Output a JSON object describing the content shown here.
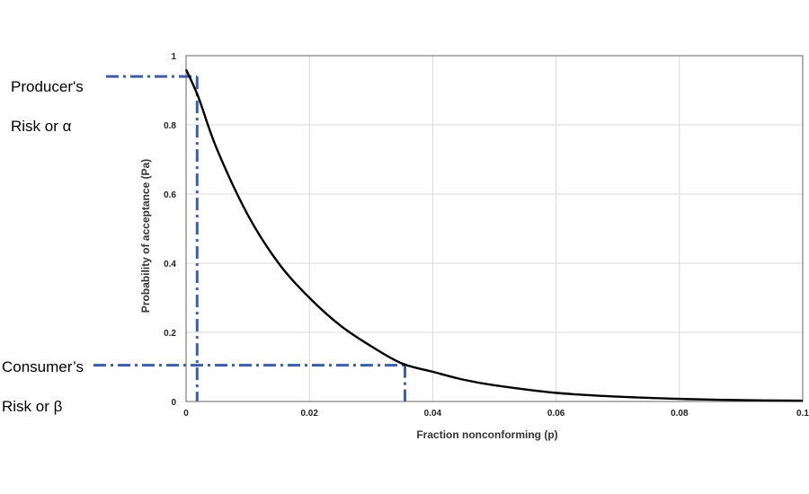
{
  "annotations": {
    "producer_line1": "Producer's",
    "producer_line2": "Risk or α",
    "consumer_line1": "Consumer’s",
    "consumer_line2": "Risk or β"
  },
  "chart_data": {
    "type": "line",
    "xlabel": "Fraction nonconforming (p)",
    "ylabel": "Probability of acceptance (Pa)",
    "xlim": [
      0,
      0.1
    ],
    "ylim": [
      0,
      1
    ],
    "x_ticks": [
      "0",
      "0.02",
      "0.04",
      "0.06",
      "0.08",
      "0.1"
    ],
    "y_ticks": [
      "0",
      "0.2",
      "0.4",
      "0.6",
      "0.8",
      "1"
    ],
    "grid": true,
    "series": [
      {
        "x": [
          0,
          0.002,
          0.005,
          0.01,
          0.015,
          0.02,
          0.025,
          0.03,
          0.035,
          0.04,
          0.045,
          0.05,
          0.06,
          0.07,
          0.08,
          0.09,
          0.1
        ],
        "y": [
          0.96,
          0.88,
          0.73,
          0.54,
          0.4,
          0.3,
          0.22,
          0.16,
          0.11,
          0.086,
          0.063,
          0.047,
          0.025,
          0.014,
          0.0075,
          0.004,
          0.0022
        ],
        "color": "#000000"
      }
    ],
    "reference_lines": {
      "color": "#3a5fa8",
      "producer_risk": {
        "p": 0.0015,
        "pa": 0.94
      },
      "consumer_risk": {
        "p": 0.0355,
        "pa": 0.105
      }
    }
  }
}
